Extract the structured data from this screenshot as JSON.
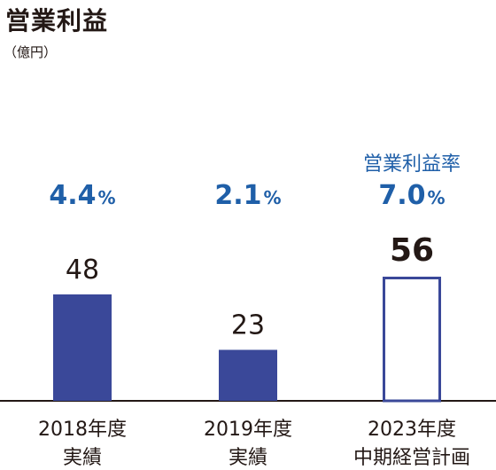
{
  "chart_data": {
    "type": "bar",
    "title": "営業利益",
    "unit": "（億円）",
    "margin_heading": "営業利益率",
    "categories": [
      "2018年度\n実績",
      "2019年度\n実績",
      "2023年度\n中期経営計画"
    ],
    "values": [
      48,
      23,
      56
    ],
    "value_labels": [
      "48",
      "23",
      "56"
    ],
    "margins": [
      "4.4",
      "2.1",
      "7.0"
    ],
    "margin_unit": "%",
    "bar_styles": [
      "filled",
      "filled",
      "outline"
    ],
    "colors": {
      "bar": "#3a4899",
      "margin_text": "#1f5fa8",
      "text": "#231815",
      "axis": "#231815"
    },
    "ylim": [
      0,
      60
    ]
  }
}
